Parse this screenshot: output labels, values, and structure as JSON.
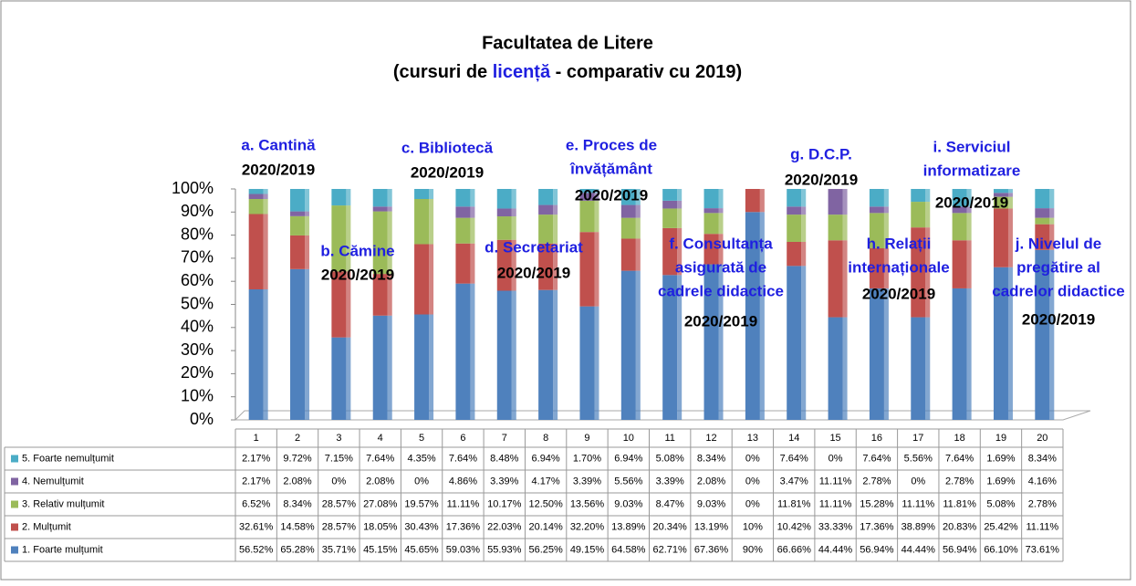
{
  "chart_data": {
    "type": "stacked_bar",
    "title": "Facultatea de Litere",
    "subtitle_parts": [
      "(cursuri de ",
      "licență",
      " - comparativ cu 2019)"
    ],
    "categories": [
      "1",
      "2",
      "3",
      "4",
      "5",
      "6",
      "7",
      "8",
      "9",
      "10",
      "11",
      "12",
      "13",
      "14",
      "15",
      "16",
      "17",
      "18",
      "19",
      "20"
    ],
    "ylim": [
      0,
      100
    ],
    "yticks": [
      {
        "value": 0,
        "label": "0%"
      },
      {
        "value": 10,
        "label": "10%"
      },
      {
        "value": 20,
        "label": "20%"
      },
      {
        "value": 30,
        "label": "30%"
      },
      {
        "value": 40,
        "label": "40%"
      },
      {
        "value": 50,
        "label": "50%"
      },
      {
        "value": 60,
        "label": "60%"
      },
      {
        "value": 70,
        "label": "70%"
      },
      {
        "value": 80,
        "label": "80%"
      },
      {
        "value": 90,
        "label": "90%"
      },
      {
        "value": 100,
        "label": "100%"
      }
    ],
    "grid": false,
    "series": [
      {
        "name": "1. Foarte mulțumit",
        "color": "#4f81bd",
        "values": [
          56.52,
          65.28,
          35.71,
          45.15,
          45.65,
          59.03,
          55.93,
          56.25,
          49.15,
          64.58,
          62.71,
          67.36,
          90,
          66.66,
          44.44,
          56.94,
          44.44,
          56.94,
          66.1,
          73.61
        ],
        "value_labels": [
          "56.52%",
          "65.28%",
          "35.71%",
          "45.15%",
          "45.65%",
          "59.03%",
          "55.93%",
          "56.25%",
          "49.15%",
          "64.58%",
          "62.71%",
          "67.36%",
          "90%",
          "66.66%",
          "44.44%",
          "56.94%",
          "44.44%",
          "56.94%",
          "66.10%",
          "73.61%"
        ]
      },
      {
        "name": "2. Mulțumit",
        "color": "#c0504d",
        "values": [
          32.61,
          14.58,
          28.57,
          18.05,
          30.43,
          17.36,
          22.03,
          20.14,
          32.2,
          13.89,
          20.34,
          13.19,
          10,
          10.42,
          33.33,
          17.36,
          38.89,
          20.83,
          25.42,
          11.11
        ],
        "value_labels": [
          "32.61%",
          "14.58%",
          "28.57%",
          "18.05%",
          "30.43%",
          "17.36%",
          "22.03%",
          "20.14%",
          "32.20%",
          "13.89%",
          "20.34%",
          "13.19%",
          "10%",
          "10.42%",
          "33.33%",
          "17.36%",
          "38.89%",
          "20.83%",
          "25.42%",
          "11.11%"
        ]
      },
      {
        "name": "3. Relativ mulțumit",
        "color": "#9bbb59",
        "values": [
          6.52,
          8.34,
          28.57,
          27.08,
          19.57,
          11.11,
          10.17,
          12.5,
          13.56,
          9.03,
          8.47,
          9.03,
          0,
          11.81,
          11.11,
          15.28,
          11.11,
          11.81,
          5.08,
          2.78
        ],
        "value_labels": [
          "6.52%",
          "8.34%",
          "28.57%",
          "27.08%",
          "19.57%",
          "11.11%",
          "10.17%",
          "12.50%",
          "13.56%",
          "9.03%",
          "8.47%",
          "9.03%",
          "0%",
          "11.81%",
          "11.11%",
          "15.28%",
          "11.11%",
          "11.81%",
          "5.08%",
          "2.78%"
        ]
      },
      {
        "name": "4. Nemulțumit",
        "color": "#8064a2",
        "values": [
          2.17,
          2.08,
          0,
          2.08,
          0,
          4.86,
          3.39,
          4.17,
          3.39,
          5.56,
          3.39,
          2.08,
          0,
          3.47,
          11.11,
          2.78,
          0,
          2.78,
          1.69,
          4.16
        ],
        "value_labels": [
          "2.17%",
          "2.08%",
          "0%",
          "2.08%",
          "0%",
          "4.86%",
          "3.39%",
          "4.17%",
          "3.39%",
          "5.56%",
          "3.39%",
          "2.08%",
          "0%",
          "3.47%",
          "11.11%",
          "2.78%",
          "0%",
          "2.78%",
          "1.69%",
          "4.16%"
        ]
      },
      {
        "name": "5. Foarte nemulțumit",
        "color": "#4bacc6",
        "values": [
          2.17,
          9.72,
          7.15,
          7.64,
          4.35,
          7.64,
          8.48,
          6.94,
          1.7,
          6.94,
          5.08,
          8.34,
          0,
          7.64,
          0,
          7.64,
          5.56,
          7.64,
          1.69,
          8.34
        ],
        "value_labels": [
          "2.17%",
          "9.72%",
          "7.15%",
          "7.64%",
          "4.35%",
          "7.64%",
          "8.48%",
          "6.94%",
          "1.70%",
          "6.94%",
          "5.08%",
          "8.34%",
          "0%",
          "7.64%",
          "0%",
          "7.64%",
          "5.56%",
          "7.64%",
          "1.69%",
          "8.34%"
        ]
      }
    ],
    "annotations": [
      {
        "lines": [
          "a. Cantină"
        ],
        "year": "2020/2019"
      },
      {
        "lines": [
          "b. Cămine"
        ],
        "year": "2020/2019"
      },
      {
        "lines": [
          "c. Bibliotecă"
        ],
        "year": "2020/2019"
      },
      {
        "lines": [
          "d. Secretariat"
        ],
        "year": "2020/2019"
      },
      {
        "lines": [
          "e. Proces de",
          "învățământ"
        ],
        "year": "2020/2019"
      },
      {
        "lines": [
          "f. Consultanța",
          "asigurată de",
          "cadrele didactice"
        ],
        "year": "2020/2019"
      },
      {
        "lines": [
          "g. D.C.P."
        ],
        "year": "2020/2019"
      },
      {
        "lines": [
          "h. Relații",
          "internaționale"
        ],
        "year": "2020/2019"
      },
      {
        "lines": [
          "i. Serviciul",
          "informatizare"
        ],
        "year": "2020/2019"
      },
      {
        "lines": [
          "j. Nivelul de",
          "pregătire al",
          "cadrelor didactice"
        ],
        "year": "2020/2019"
      }
    ]
  }
}
